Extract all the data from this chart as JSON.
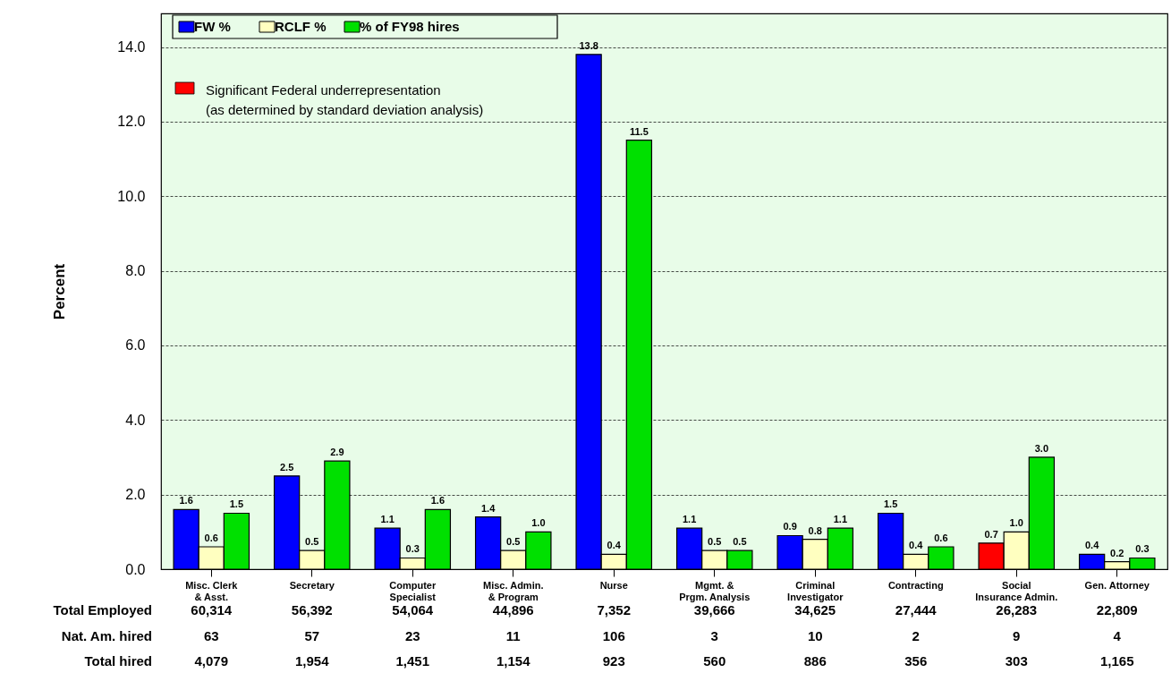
{
  "chart_data": {
    "type": "bar",
    "ylabel": "Percent",
    "categories": [
      "Misc. Clerk\n& Asst.",
      "Secretary",
      "Computer\nSpecialist",
      "Misc. Admin.\n& Program",
      "Nurse",
      "Mgmt. &\nPrgm. Analysis",
      "Criminal\nInvestigator",
      "Contracting",
      "Social\nInsurance Admin.",
      "Gen. Attorney"
    ],
    "series": [
      {
        "name": "FW %",
        "color": "#0000ff",
        "colors": [
          "#0000ff",
          "#0000ff",
          "#0000ff",
          "#0000ff",
          "#0000ff",
          "#0000ff",
          "#0000ff",
          "#0000ff",
          "#ff0000",
          "#0000ff"
        ],
        "values": [
          1.6,
          2.5,
          1.1,
          1.4,
          13.8,
          1.1,
          0.9,
          1.5,
          0.7,
          0.4
        ],
        "value_labels": [
          "1.6",
          "2.5",
          "1.1",
          "1.4",
          "13.8",
          "1.1",
          "0.9",
          "1.5",
          "0.7",
          "0.4"
        ]
      },
      {
        "name": "RCLF %",
        "color": "#ffffc0",
        "values": [
          0.6,
          0.5,
          0.3,
          0.5,
          0.4,
          0.5,
          0.8,
          0.4,
          1.0,
          0.2
        ],
        "value_labels": [
          "0.6",
          "0.5",
          "0.3",
          "0.5",
          "0.4",
          "0.5",
          "0.8",
          "0.4",
          "1.0",
          "0.2"
        ]
      },
      {
        "name": "% of FY98 hires",
        "color": "#00e000",
        "values": [
          1.5,
          2.9,
          1.6,
          1.0,
          11.5,
          0.5,
          1.1,
          0.6,
          3.0,
          0.3
        ],
        "value_labels": [
          "1.5",
          "2.9",
          "1.6",
          "1.0",
          "11.5",
          "0.5",
          "1.1",
          "0.6",
          "3.0",
          "0.3"
        ]
      },
      {
        "name": "Significant Federal underrepresentation\n(as determined by standard deviation analysis)",
        "color": "#ff0000",
        "values": [
          null,
          null,
          null,
          null,
          null,
          null,
          null,
          null,
          null,
          null
        ]
      }
    ],
    "ylim": [
      0,
      14.9
    ],
    "yticks": [
      {
        "value": 0,
        "label": "0.0"
      },
      {
        "value": 2,
        "label": "2.0"
      },
      {
        "value": 4,
        "label": "4.0"
      },
      {
        "value": 6,
        "label": "6.0"
      },
      {
        "value": 8,
        "label": "8.0"
      },
      {
        "value": 10,
        "label": "10.0"
      },
      {
        "value": 12,
        "label": "12.0"
      },
      {
        "value": 14,
        "label": "14.0"
      }
    ],
    "grid": "y",
    "legend": "top left",
    "annotations": [
      "Total Employed",
      "60,314",
      "56,392",
      "54,064",
      "44,896",
      "7,352",
      "39,666",
      "34,625",
      "27,444",
      "26,283",
      "22,809",
      "Nat. Am. hired",
      "63",
      "57",
      "23",
      "11",
      "106",
      "3",
      "10",
      "2",
      "9",
      "4",
      "Total hired",
      "4,079",
      "1,954",
      "1,451",
      "1,154",
      "923",
      "560",
      "886",
      "356",
      "303",
      "1,165"
    ]
  }
}
